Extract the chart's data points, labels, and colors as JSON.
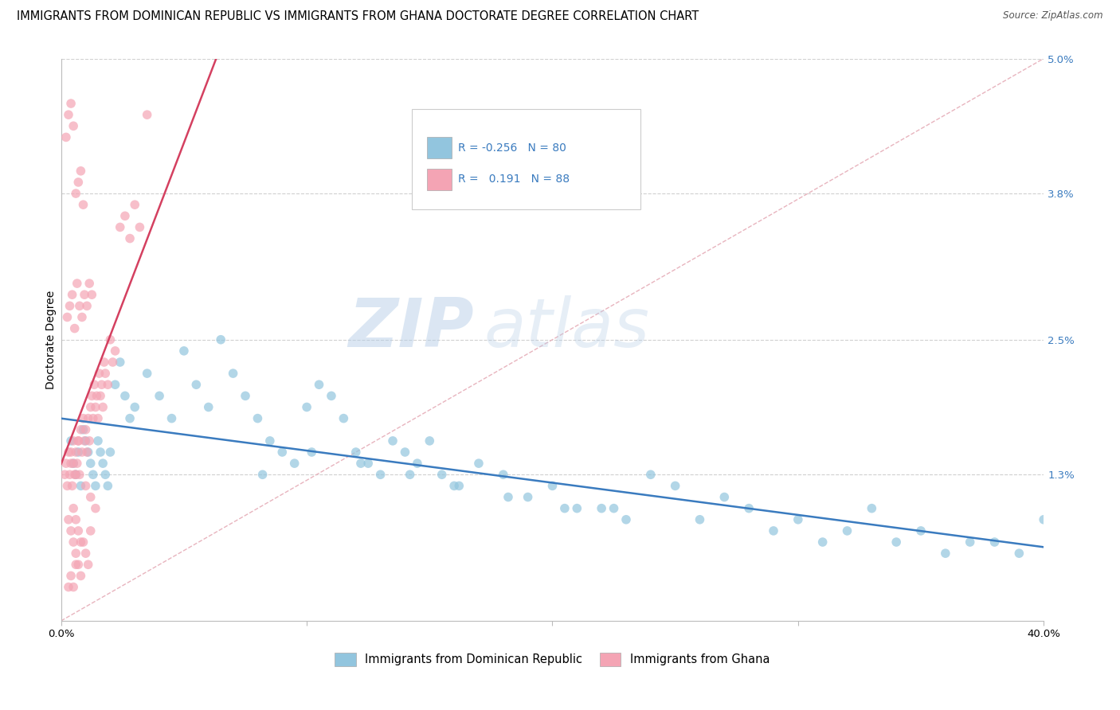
{
  "title": "IMMIGRANTS FROM DOMINICAN REPUBLIC VS IMMIGRANTS FROM GHANA DOCTORATE DEGREE CORRELATION CHART",
  "source": "Source: ZipAtlas.com",
  "ylabel": "Doctorate Degree",
  "right_yticklabels": [
    "",
    "1.3%",
    "2.5%",
    "3.8%",
    "5.0%"
  ],
  "right_ytick_vals": [
    0.0,
    1.3,
    2.5,
    3.8,
    5.0
  ],
  "xmin": 0.0,
  "xmax": 40.0,
  "ymin": 0.0,
  "ymax": 5.0,
  "watermark_zip": "ZIP",
  "watermark_atlas": "atlas",
  "legend_line1": "R = -0.256   N = 80",
  "legend_line2": "R =   0.191   N = 88",
  "legend_label1": "Immigrants from Dominican Republic",
  "legend_label2": "Immigrants from Ghana",
  "blue_color": "#92c5de",
  "pink_color": "#f4a4b4",
  "blue_line_color": "#3a7bbf",
  "pink_line_color": "#d44060",
  "diag_line_color": "#e8b4be",
  "dot_alpha": 0.7,
  "dot_size": 70,
  "grid_color": "#d0d0d0",
  "background_color": "#ffffff",
  "title_fontsize": 10.5,
  "axis_label_fontsize": 10,
  "tick_fontsize": 9.5,
  "blue_dots_x": [
    0.4,
    0.5,
    0.6,
    0.7,
    0.8,
    0.9,
    1.0,
    1.1,
    1.2,
    1.3,
    1.4,
    1.5,
    1.6,
    1.7,
    1.8,
    1.9,
    2.0,
    2.2,
    2.4,
    2.6,
    2.8,
    3.0,
    3.5,
    4.0,
    4.5,
    5.0,
    5.5,
    6.0,
    6.5,
    7.0,
    7.5,
    8.0,
    8.5,
    9.0,
    9.5,
    10.0,
    10.5,
    11.0,
    11.5,
    12.0,
    12.5,
    13.0,
    13.5,
    14.0,
    14.5,
    15.0,
    15.5,
    16.0,
    17.0,
    18.0,
    19.0,
    20.0,
    21.0,
    22.0,
    23.0,
    24.0,
    25.0,
    26.0,
    27.0,
    28.0,
    29.0,
    30.0,
    31.0,
    32.0,
    33.0,
    34.0,
    35.0,
    36.0,
    37.0,
    38.0,
    39.0,
    40.0,
    8.2,
    10.2,
    12.2,
    14.2,
    16.2,
    18.2,
    20.5,
    22.5
  ],
  "blue_dots_y": [
    1.6,
    1.4,
    1.3,
    1.5,
    1.2,
    1.7,
    1.6,
    1.5,
    1.4,
    1.3,
    1.2,
    1.6,
    1.5,
    1.4,
    1.3,
    1.2,
    1.5,
    2.1,
    2.3,
    2.0,
    1.8,
    1.9,
    2.2,
    2.0,
    1.8,
    2.4,
    2.1,
    1.9,
    2.5,
    2.2,
    2.0,
    1.8,
    1.6,
    1.5,
    1.4,
    1.9,
    2.1,
    2.0,
    1.8,
    1.5,
    1.4,
    1.3,
    1.6,
    1.5,
    1.4,
    1.6,
    1.3,
    1.2,
    1.4,
    1.3,
    1.1,
    1.2,
    1.0,
    1.0,
    0.9,
    1.3,
    1.2,
    0.9,
    1.1,
    1.0,
    0.8,
    0.9,
    0.7,
    0.8,
    1.0,
    0.7,
    0.8,
    0.6,
    0.7,
    0.7,
    0.6,
    0.9,
    1.3,
    1.5,
    1.4,
    1.3,
    1.2,
    1.1,
    1.0,
    1.0
  ],
  "pink_dots_x": [
    0.15,
    0.2,
    0.25,
    0.3,
    0.35,
    0.4,
    0.45,
    0.5,
    0.55,
    0.6,
    0.65,
    0.7,
    0.75,
    0.8,
    0.85,
    0.9,
    0.95,
    1.0,
    1.05,
    1.1,
    1.15,
    1.2,
    1.25,
    1.3,
    1.35,
    1.4,
    1.45,
    1.5,
    1.55,
    1.6,
    1.65,
    1.7,
    1.75,
    1.8,
    1.9,
    2.0,
    2.1,
    2.2,
    2.4,
    2.6,
    2.8,
    3.0,
    3.2,
    3.5,
    0.3,
    0.4,
    0.5,
    0.6,
    0.7,
    0.8,
    0.9,
    1.0,
    1.1,
    1.2,
    0.25,
    0.35,
    0.45,
    0.55,
    0.65,
    0.75,
    0.85,
    0.95,
    1.05,
    1.15,
    1.25,
    0.2,
    0.3,
    0.4,
    0.5,
    0.6,
    0.7,
    0.8,
    0.9,
    0.5,
    0.6,
    0.7,
    0.8,
    1.0,
    1.2,
    1.4,
    0.3,
    0.4,
    0.5,
    0.6,
    0.4,
    0.5,
    0.6,
    0.7
  ],
  "pink_dots_y": [
    1.3,
    1.4,
    1.2,
    1.5,
    1.3,
    1.4,
    1.2,
    1.6,
    1.3,
    1.5,
    1.4,
    1.6,
    1.3,
    1.7,
    1.5,
    1.8,
    1.6,
    1.7,
    1.5,
    1.8,
    1.6,
    1.9,
    2.0,
    1.8,
    2.1,
    1.9,
    2.0,
    1.8,
    2.2,
    2.0,
    2.1,
    1.9,
    2.3,
    2.2,
    2.1,
    2.5,
    2.3,
    2.4,
    3.5,
    3.6,
    3.4,
    3.7,
    3.5,
    4.5,
    0.9,
    0.8,
    0.7,
    0.6,
    0.5,
    0.4,
    0.7,
    0.6,
    0.5,
    0.8,
    2.7,
    2.8,
    2.9,
    2.6,
    3.0,
    2.8,
    2.7,
    2.9,
    2.8,
    3.0,
    2.9,
    4.3,
    4.5,
    4.6,
    4.4,
    3.8,
    3.9,
    4.0,
    3.7,
    1.0,
    0.9,
    0.8,
    0.7,
    1.2,
    1.1,
    1.0,
    0.3,
    0.4,
    0.3,
    0.5,
    1.5,
    1.4,
    1.3,
    1.6
  ]
}
